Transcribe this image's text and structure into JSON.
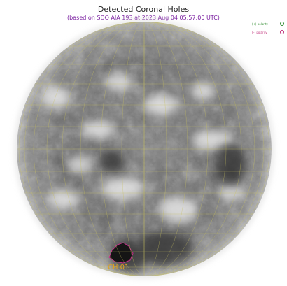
{
  "header": {
    "title": "Detected Coronal Holes",
    "subtitle": "(based on SDO AIA 193 at 2023 Aug 04 05:57:00 UTC)"
  },
  "legend": {
    "items": [
      {
        "label": "(+) polarity",
        "color": "#2e8b2e",
        "icon": "green-circle-icon"
      },
      {
        "label": "(–) polarity",
        "color": "#c0307a",
        "icon": "magenta-circle-icon"
      }
    ]
  },
  "coronal_holes": [
    {
      "label": "CH 01",
      "polarity": "negative",
      "label_color": "#e0a020",
      "outline_color": "#c8308c"
    }
  ],
  "colors": {
    "grid": "#c8c060",
    "title_purple": "#7a1fa0"
  }
}
